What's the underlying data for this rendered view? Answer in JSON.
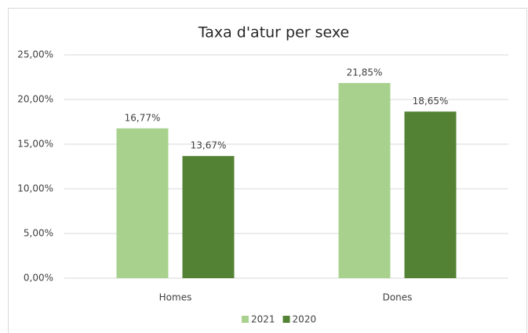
{
  "chart_data": {
    "type": "bar",
    "title": "Taxa d'atur per sexe",
    "categories": [
      "Homes",
      "Dones"
    ],
    "series": [
      {
        "name": "2021",
        "color": "#a9d18e",
        "values": [
          16.77,
          21.85
        ],
        "value_labels": [
          "16,77%",
          "21,85%"
        ]
      },
      {
        "name": "2020",
        "color": "#548235",
        "values": [
          13.67,
          18.65
        ],
        "value_labels": [
          "13,67%",
          "18,65%"
        ]
      }
    ],
    "ylim": [
      0,
      25
    ],
    "yticks": [
      {
        "value": 0,
        "label": "0,00%"
      },
      {
        "value": 5,
        "label": "5,00%"
      },
      {
        "value": 10,
        "label": "10,00%"
      },
      {
        "value": 15,
        "label": "15,00%"
      },
      {
        "value": 20,
        "label": "20,00%"
      },
      {
        "value": 25,
        "label": "25,00%"
      }
    ],
    "grid": true,
    "legend": "bottom"
  }
}
